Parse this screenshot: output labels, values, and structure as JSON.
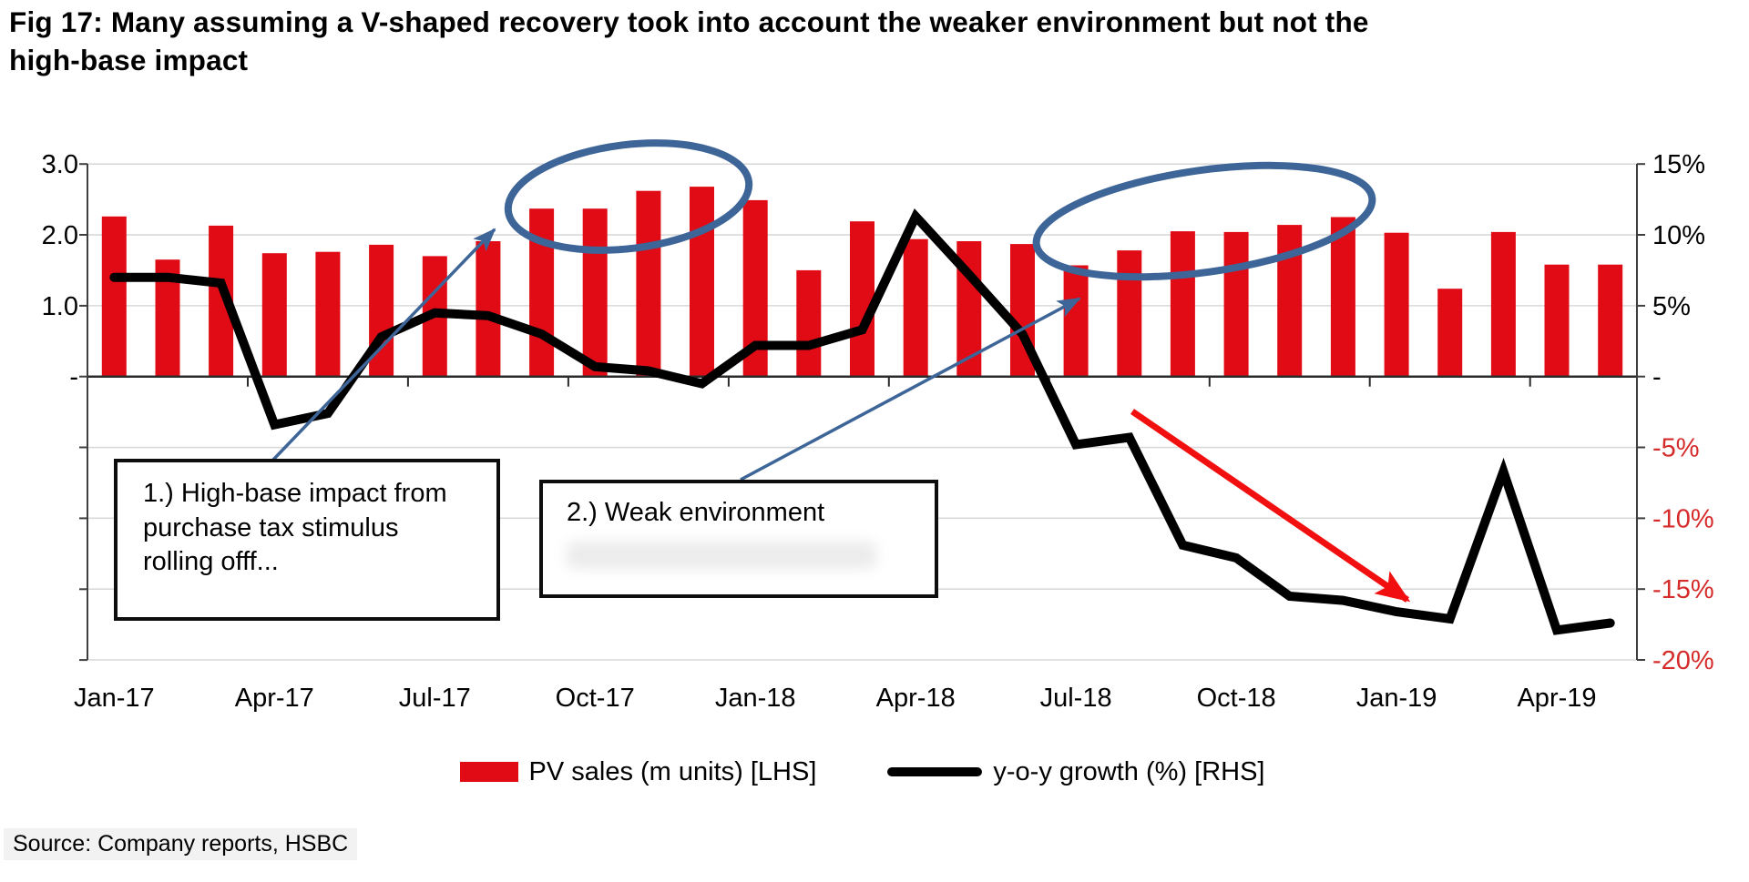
{
  "title": "Fig 17: Many assuming a V-shaped recovery took into account the weaker environment but not the high-base impact",
  "source": "Source: Company reports, HSBC",
  "annotations": {
    "box1_text": "1.) High-base impact from purchase tax stimulus rolling offf...",
    "box2_text": "2.) Weak environment"
  },
  "colors": {
    "bar_red": "#e00b15",
    "annotation_blue": "#3e6598",
    "red_arrow": "#f20f0f",
    "negative_axis_label_red": "#d62b2b",
    "gridline_gray": "#d9d9d9",
    "axis_spine_gray": "#3f3f3f"
  },
  "chart_data": {
    "type": "combo",
    "subtype": "bar+line, dual axis",
    "grid": "horizontal",
    "legend_position": "bottom",
    "categories": [
      "Jan-17",
      "Feb-17",
      "Mar-17",
      "Apr-17",
      "May-17",
      "Jun-17",
      "Jul-17",
      "Aug-17",
      "Sep-17",
      "Oct-17",
      "Nov-17",
      "Dec-17",
      "Jan-18",
      "Feb-18",
      "Mar-18",
      "Apr-18",
      "May-18",
      "Jun-18",
      "Jul-18",
      "Aug-18",
      "Sep-18",
      "Oct-18",
      "Nov-18",
      "Dec-18",
      "Jan-19",
      "Feb-19",
      "Mar-19",
      "Apr-19",
      "May-19"
    ],
    "series": [
      {
        "name": "PV sales (m units) [LHS]",
        "type": "bar",
        "axis": "left",
        "color": "#e00b15",
        "values": [
          2.26,
          1.65,
          2.13,
          1.74,
          1.76,
          1.86,
          1.7,
          1.91,
          2.37,
          2.37,
          2.62,
          2.68,
          2.49,
          1.5,
          2.19,
          1.94,
          1.91,
          1.87,
          1.57,
          1.78,
          2.05,
          2.04,
          2.14,
          2.25,
          2.03,
          1.24,
          2.04,
          1.58,
          1.58
        ]
      },
      {
        "name": "y-o-y growth (%) [RHS]",
        "type": "line",
        "axis": "right",
        "color": "#000000",
        "values": [
          7.0,
          7.0,
          6.6,
          -3.4,
          -2.6,
          2.8,
          4.5,
          4.3,
          3.0,
          0.7,
          0.4,
          -0.5,
          2.2,
          2.2,
          3.3,
          11.3,
          7.2,
          3.0,
          -4.8,
          -4.3,
          -11.9,
          -12.8,
          -15.5,
          -15.8,
          -16.6,
          -17.1,
          -6.7,
          -17.9,
          -17.4
        ]
      }
    ],
    "left_axis": {
      "tick_labels": [
        "3.0",
        "2.0",
        "1.0",
        "-"
      ],
      "tick_values": [
        3,
        2,
        1,
        0
      ],
      "unlabeled_tick_values": [
        -1,
        -2,
        -3,
        -4
      ],
      "range": [
        -4,
        3
      ]
    },
    "right_axis": {
      "tick_labels": [
        "15%",
        "10%",
        "5%",
        "-",
        "-5%",
        "-10%",
        "-15%",
        "-20%"
      ],
      "tick_values": [
        15,
        10,
        5,
        0,
        -5,
        -10,
        -15,
        -20
      ],
      "range": [
        -20,
        15
      ]
    },
    "x_axis": {
      "visible_labels": [
        "Jan-17",
        "Apr-17",
        "Jul-17",
        "Oct-17",
        "Jan-18",
        "Apr-18",
        "Jul-18",
        "Oct-18",
        "Jan-19",
        "Apr-19"
      ],
      "label_every_n_months": 3
    }
  },
  "legend": [
    {
      "label": "PV sales (m units) [LHS]",
      "swatch": "bar",
      "color": "#e00b15"
    },
    {
      "label": "y-o-y growth (%) [RHS]",
      "swatch": "line",
      "color": "#000000"
    }
  ]
}
